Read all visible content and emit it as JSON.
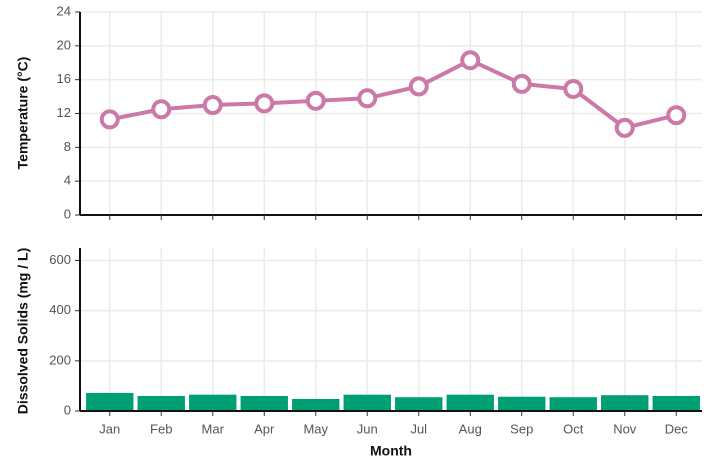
{
  "chart_data": [
    {
      "type": "line",
      "y_label": "Temperature (°C)",
      "values": [
        11.3,
        12.5,
        13.0,
        13.2,
        13.5,
        13.8,
        15.2,
        18.3,
        15.5,
        14.9,
        10.3,
        11.8
      ],
      "color": "#cc79a7",
      "ylim": [
        0,
        24
      ],
      "yticks": [
        0,
        4,
        8,
        12,
        16,
        20,
        24
      ],
      "grid": true
    },
    {
      "type": "bar",
      "y_label": "Dissolved Solids (mg / L)",
      "x_label": "Month",
      "categories": [
        "Jan",
        "Feb",
        "Mar",
        "Apr",
        "May",
        "Jun",
        "Jul",
        "Aug",
        "Sep",
        "Oct",
        "Nov",
        "Dec"
      ],
      "values": [
        72,
        60,
        65,
        60,
        48,
        65,
        55,
        65,
        57,
        55,
        63,
        60
      ],
      "color": "#009e73",
      "ylim": [
        0,
        650
      ],
      "yticks": [
        0,
        200,
        400,
        600
      ],
      "grid": true
    }
  ]
}
